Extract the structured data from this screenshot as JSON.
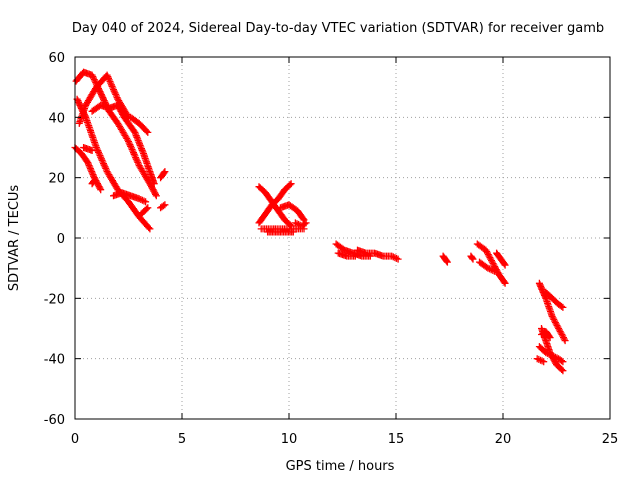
{
  "chart_data": {
    "type": "scatter",
    "title": "Day 040 of 2024, Sidereal Day-to-day VTEC variation (SDTVAR) for receiver gamb",
    "xlabel": "GPS time / hours",
    "ylabel": "SDTVAR / TECUs",
    "xlim": [
      0,
      25
    ],
    "ylim": [
      -60,
      60
    ],
    "xticks": [
      0,
      5,
      10,
      15,
      20,
      25
    ],
    "yticks": [
      -60,
      -40,
      -20,
      0,
      20,
      40,
      60
    ],
    "grid": true,
    "marker": "plus",
    "color": "#ff0000",
    "tracks": [
      [
        [
          0.05,
          52
        ],
        [
          0.4,
          55
        ],
        [
          0.8,
          54
        ],
        [
          1.2,
          48
        ],
        [
          1.6,
          42
        ],
        [
          2.0,
          38
        ],
        [
          2.5,
          32
        ],
        [
          3.0,
          24
        ],
        [
          3.5,
          18
        ],
        [
          3.8,
          14
        ]
      ],
      [
        [
          0.1,
          46
        ],
        [
          0.5,
          40
        ],
        [
          1.0,
          30
        ],
        [
          1.5,
          22
        ],
        [
          2.0,
          16
        ],
        [
          2.5,
          12
        ],
        [
          3.0,
          7
        ],
        [
          3.5,
          3
        ]
      ],
      [
        [
          0.2,
          38
        ],
        [
          0.5,
          44
        ],
        [
          1.0,
          50
        ],
        [
          1.5,
          54
        ],
        [
          2.0,
          46
        ],
        [
          2.5,
          40
        ]
      ],
      [
        [
          0.0,
          30
        ],
        [
          0.3,
          28
        ],
        [
          0.6,
          25
        ],
        [
          0.9,
          20
        ],
        [
          1.2,
          16
        ]
      ],
      [
        [
          0.8,
          42
        ],
        [
          1.2,
          44
        ],
        [
          1.6,
          43
        ],
        [
          2.0,
          44
        ]
      ],
      [
        [
          2.0,
          44
        ],
        [
          2.3,
          40
        ],
        [
          2.8,
          35
        ],
        [
          3.2,
          28
        ],
        [
          3.5,
          22
        ],
        [
          3.7,
          18
        ]
      ],
      [
        [
          1.8,
          14
        ],
        [
          2.2,
          15
        ],
        [
          2.6,
          14
        ],
        [
          3.0,
          13
        ],
        [
          3.3,
          12
        ]
      ],
      [
        [
          0.4,
          30
        ],
        [
          0.8,
          29
        ]
      ],
      [
        [
          0.8,
          18
        ],
        [
          0.9,
          19
        ]
      ],
      [
        [
          2.6,
          40
        ],
        [
          3.0,
          38
        ],
        [
          3.4,
          35
        ]
      ],
      [
        [
          3.1,
          8
        ],
        [
          3.4,
          10
        ]
      ],
      [
        [
          4.0,
          10
        ],
        [
          4.2,
          11
        ]
      ],
      [
        [
          4.0,
          20
        ],
        [
          4.2,
          22
        ]
      ],
      [
        [
          8.6,
          17
        ],
        [
          8.9,
          15
        ],
        [
          9.2,
          12
        ],
        [
          9.5,
          9
        ],
        [
          9.8,
          6
        ],
        [
          10.1,
          4
        ]
      ],
      [
        [
          8.6,
          5
        ],
        [
          8.9,
          8
        ],
        [
          9.2,
          11
        ],
        [
          9.5,
          13
        ],
        [
          9.8,
          16
        ],
        [
          10.1,
          18
        ]
      ],
      [
        [
          8.7,
          3
        ],
        [
          9.2,
          3
        ],
        [
          9.7,
          3
        ],
        [
          10.2,
          3
        ],
        [
          10.7,
          3
        ]
      ],
      [
        [
          9.0,
          2
        ],
        [
          9.6,
          2
        ],
        [
          10.2,
          2
        ]
      ],
      [
        [
          9.6,
          10
        ],
        [
          10.0,
          11
        ],
        [
          10.4,
          9
        ],
        [
          10.7,
          6
        ]
      ],
      [
        [
          10.3,
          5
        ],
        [
          10.6,
          4
        ],
        [
          10.8,
          5
        ]
      ],
      [
        [
          12.2,
          -2
        ],
        [
          12.6,
          -4
        ],
        [
          13.0,
          -5
        ],
        [
          13.4,
          -6
        ],
        [
          13.8,
          -6
        ]
      ],
      [
        [
          13.2,
          -4
        ],
        [
          13.6,
          -5
        ],
        [
          14.0,
          -5
        ],
        [
          14.4,
          -6
        ],
        [
          14.8,
          -6
        ],
        [
          15.1,
          -7
        ]
      ],
      [
        [
          12.3,
          -5
        ],
        [
          12.7,
          -6
        ],
        [
          13.1,
          -6
        ]
      ],
      [
        [
          17.2,
          -6
        ],
        [
          17.3,
          -7
        ],
        [
          17.4,
          -8
        ]
      ],
      [
        [
          18.8,
          -2
        ],
        [
          19.2,
          -4
        ],
        [
          19.5,
          -8
        ],
        [
          19.8,
          -12
        ],
        [
          20.1,
          -15
        ]
      ],
      [
        [
          18.9,
          -8
        ],
        [
          19.3,
          -10
        ],
        [
          19.6,
          -11
        ]
      ],
      [
        [
          19.7,
          -5
        ],
        [
          19.9,
          -7
        ],
        [
          20.1,
          -9
        ]
      ],
      [
        [
          18.5,
          -6
        ],
        [
          18.6,
          -7
        ]
      ],
      [
        [
          21.7,
          -15
        ],
        [
          22.0,
          -20
        ],
        [
          22.3,
          -26
        ],
        [
          22.6,
          -30
        ],
        [
          22.9,
          -34
        ]
      ],
      [
        [
          22.0,
          -18
        ],
        [
          22.3,
          -20
        ],
        [
          22.6,
          -22
        ],
        [
          22.8,
          -23
        ]
      ],
      [
        [
          21.8,
          -30
        ],
        [
          22.0,
          -34
        ],
        [
          22.2,
          -38
        ],
        [
          22.5,
          -42
        ],
        [
          22.8,
          -44
        ]
      ],
      [
        [
          21.7,
          -36
        ],
        [
          22.0,
          -38
        ],
        [
          22.3,
          -39
        ],
        [
          22.6,
          -40
        ],
        [
          22.8,
          -41
        ]
      ],
      [
        [
          21.8,
          -32
        ],
        [
          22.0,
          -31
        ],
        [
          22.2,
          -33
        ]
      ],
      [
        [
          21.6,
          -40
        ],
        [
          21.9,
          -41
        ]
      ]
    ]
  }
}
